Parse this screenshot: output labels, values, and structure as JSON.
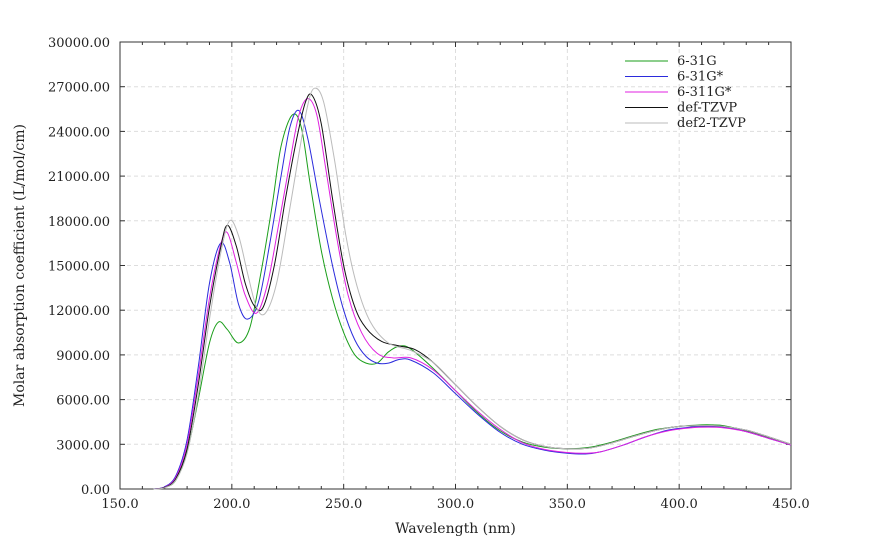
{
  "chart_data": {
    "type": "line",
    "title": "",
    "xlabel": "Wavelength (nm)",
    "ylabel": "Molar absorption coefficient (L/mol/cm)",
    "xlim": [
      150.0,
      450.0
    ],
    "ylim": [
      0,
      30000
    ],
    "xticks": [
      "150.0",
      "200.0",
      "250.0",
      "300.0",
      "350.0",
      "400.0",
      "450.0"
    ],
    "yticks": [
      "0.00",
      "3000.00",
      "6000.00",
      "9000.00",
      "12000.00",
      "15000.00",
      "18000.00",
      "21000.00",
      "24000.00",
      "27000.00",
      "30000.00"
    ],
    "grid": true,
    "legend_position": "top-right",
    "series": [
      {
        "name": "6-31G",
        "color": "#1a9e1a",
        "points": [
          [
            165,
            0
          ],
          [
            170,
            100
          ],
          [
            175,
            600
          ],
          [
            180,
            2500
          ],
          [
            185,
            6000
          ],
          [
            190,
            9800
          ],
          [
            194,
            11200
          ],
          [
            198,
            10700
          ],
          [
            203,
            9800
          ],
          [
            208,
            10800
          ],
          [
            213,
            14500
          ],
          [
            218,
            19000
          ],
          [
            222,
            23000
          ],
          [
            227,
            25100
          ],
          [
            231,
            24300
          ],
          [
            235,
            20500
          ],
          [
            240,
            16000
          ],
          [
            245,
            12800
          ],
          [
            250,
            10500
          ],
          [
            255,
            9000
          ],
          [
            260,
            8450
          ],
          [
            265,
            8450
          ],
          [
            270,
            9200
          ],
          [
            275,
            9600
          ],
          [
            280,
            9400
          ],
          [
            290,
            8100
          ],
          [
            300,
            6600
          ],
          [
            310,
            5100
          ],
          [
            320,
            3900
          ],
          [
            330,
            3150
          ],
          [
            340,
            2800
          ],
          [
            350,
            2700
          ],
          [
            360,
            2800
          ],
          [
            370,
            3150
          ],
          [
            380,
            3600
          ],
          [
            390,
            4000
          ],
          [
            400,
            4200
          ],
          [
            410,
            4300
          ],
          [
            415,
            4300
          ],
          [
            420,
            4250
          ],
          [
            430,
            3900
          ],
          [
            440,
            3450
          ],
          [
            450,
            2950
          ]
        ]
      },
      {
        "name": "6-31G*",
        "color": "#2b2bdc",
        "points": [
          [
            165,
            0
          ],
          [
            170,
            150
          ],
          [
            175,
            900
          ],
          [
            180,
            3300
          ],
          [
            185,
            8200
          ],
          [
            190,
            13800
          ],
          [
            195,
            16500
          ],
          [
            199,
            15200
          ],
          [
            203,
            12400
          ],
          [
            207,
            11400
          ],
          [
            212,
            12600
          ],
          [
            217,
            16500
          ],
          [
            222,
            21000
          ],
          [
            226,
            24300
          ],
          [
            230,
            25400
          ],
          [
            234,
            23500
          ],
          [
            239,
            19500
          ],
          [
            245,
            15000
          ],
          [
            250,
            12000
          ],
          [
            255,
            10000
          ],
          [
            260,
            8900
          ],
          [
            265,
            8450
          ],
          [
            270,
            8450
          ],
          [
            275,
            8700
          ],
          [
            280,
            8650
          ],
          [
            290,
            7800
          ],
          [
            300,
            6400
          ],
          [
            310,
            5000
          ],
          [
            320,
            3800
          ],
          [
            330,
            3000
          ],
          [
            340,
            2600
          ],
          [
            350,
            2400
          ],
          [
            358,
            2350
          ],
          [
            365,
            2500
          ],
          [
            375,
            2950
          ],
          [
            385,
            3500
          ],
          [
            395,
            3950
          ],
          [
            405,
            4150
          ],
          [
            413,
            4200
          ],
          [
            420,
            4150
          ],
          [
            430,
            3850
          ],
          [
            440,
            3400
          ],
          [
            450,
            2950
          ]
        ]
      },
      {
        "name": "6-311G*",
        "color": "#e020e0",
        "points": [
          [
            165,
            0
          ],
          [
            170,
            120
          ],
          [
            175,
            800
          ],
          [
            180,
            3000
          ],
          [
            185,
            7600
          ],
          [
            190,
            12800
          ],
          [
            195,
            16400
          ],
          [
            198,
            17200
          ],
          [
            202,
            15200
          ],
          [
            206,
            13000
          ],
          [
            211,
            11800
          ],
          [
            216,
            13800
          ],
          [
            221,
            17800
          ],
          [
            226,
            22000
          ],
          [
            230,
            25100
          ],
          [
            234,
            26200
          ],
          [
            238,
            25100
          ],
          [
            242,
            21500
          ],
          [
            247,
            16800
          ],
          [
            252,
            13000
          ],
          [
            258,
            10500
          ],
          [
            265,
            9100
          ],
          [
            272,
            8800
          ],
          [
            280,
            8800
          ],
          [
            290,
            8000
          ],
          [
            300,
            6600
          ],
          [
            310,
            5200
          ],
          [
            320,
            4000
          ],
          [
            330,
            3100
          ],
          [
            340,
            2650
          ],
          [
            350,
            2450
          ],
          [
            358,
            2400
          ],
          [
            365,
            2500
          ],
          [
            375,
            2950
          ],
          [
            385,
            3500
          ],
          [
            395,
            3900
          ],
          [
            405,
            4100
          ],
          [
            413,
            4150
          ],
          [
            420,
            4100
          ],
          [
            430,
            3850
          ],
          [
            440,
            3400
          ],
          [
            450,
            2950
          ]
        ]
      },
      {
        "name": "def-TZVP",
        "color": "#111111",
        "points": [
          [
            165,
            0
          ],
          [
            170,
            100
          ],
          [
            175,
            700
          ],
          [
            180,
            2700
          ],
          [
            185,
            7000
          ],
          [
            190,
            12200
          ],
          [
            195,
            16200
          ],
          [
            198,
            17700
          ],
          [
            202,
            16300
          ],
          [
            206,
            13800
          ],
          [
            210,
            12300
          ],
          [
            214,
            12200
          ],
          [
            219,
            15000
          ],
          [
            224,
            19500
          ],
          [
            229,
            23500
          ],
          [
            233,
            26000
          ],
          [
            236,
            26400
          ],
          [
            240,
            24500
          ],
          [
            245,
            19500
          ],
          [
            250,
            15000
          ],
          [
            255,
            12200
          ],
          [
            260,
            10800
          ],
          [
            267,
            9900
          ],
          [
            275,
            9600
          ],
          [
            282,
            9350
          ],
          [
            290,
            8500
          ],
          [
            300,
            7000
          ],
          [
            310,
            5500
          ],
          [
            320,
            4200
          ],
          [
            330,
            3300
          ],
          [
            340,
            2850
          ],
          [
            350,
            2700
          ],
          [
            360,
            2750
          ],
          [
            370,
            3100
          ],
          [
            380,
            3550
          ],
          [
            390,
            3950
          ],
          [
            400,
            4200
          ],
          [
            408,
            4250
          ],
          [
            415,
            4250
          ],
          [
            420,
            4200
          ],
          [
            430,
            3950
          ],
          [
            440,
            3500
          ],
          [
            450,
            3000
          ]
        ]
      },
      {
        "name": "def2-TZVP",
        "color": "#bbbbbb",
        "points": [
          [
            165,
            0
          ],
          [
            170,
            80
          ],
          [
            175,
            600
          ],
          [
            180,
            2400
          ],
          [
            185,
            6300
          ],
          [
            190,
            11400
          ],
          [
            195,
            15800
          ],
          [
            199,
            18000
          ],
          [
            203,
            17000
          ],
          [
            207,
            14500
          ],
          [
            211,
            12200
          ],
          [
            215,
            11800
          ],
          [
            220,
            13800
          ],
          [
            225,
            18000
          ],
          [
            230,
            22500
          ],
          [
            234,
            25800
          ],
          [
            237,
            26900
          ],
          [
            241,
            26000
          ],
          [
            246,
            22000
          ],
          [
            251,
            17000
          ],
          [
            256,
            13600
          ],
          [
            262,
            11200
          ],
          [
            270,
            9800
          ],
          [
            280,
            9300
          ],
          [
            290,
            8500
          ],
          [
            300,
            7000
          ],
          [
            310,
            5500
          ],
          [
            320,
            4200
          ],
          [
            330,
            3300
          ],
          [
            340,
            2850
          ],
          [
            350,
            2700
          ],
          [
            360,
            2750
          ],
          [
            370,
            3100
          ],
          [
            380,
            3550
          ],
          [
            390,
            3950
          ],
          [
            400,
            4200
          ],
          [
            408,
            4250
          ],
          [
            415,
            4250
          ],
          [
            420,
            4200
          ],
          [
            430,
            3950
          ],
          [
            440,
            3500
          ],
          [
            450,
            3000
          ]
        ]
      }
    ]
  }
}
